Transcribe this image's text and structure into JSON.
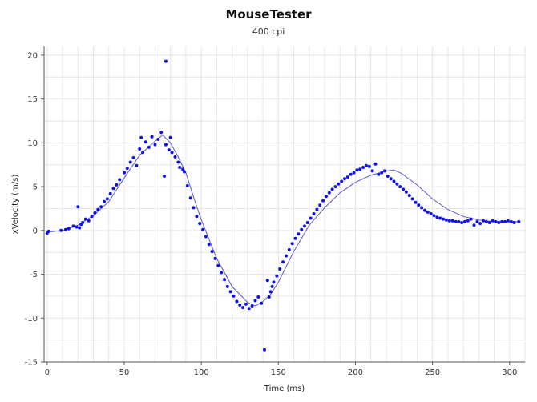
{
  "chart_data": {
    "type": "scatter",
    "title": "MouseTester",
    "subtitle": "400 cpi",
    "xlabel": "Time (ms)",
    "ylabel": "xVelocity (m/s)",
    "xlim": [
      -2,
      310
    ],
    "ylim": [
      -15,
      21
    ],
    "xticks": [
      0,
      50,
      100,
      150,
      200,
      250,
      300
    ],
    "yticks": [
      -15,
      -10,
      -5,
      0,
      5,
      10,
      15,
      20
    ],
    "grid": true,
    "legend": "none",
    "colors": {
      "points": "#1010ee",
      "line": "#5a5ad0",
      "grid": "#e6e6e6",
      "axis": "#555555"
    },
    "series": [
      {
        "kind": "points",
        "x": [
          0,
          1,
          9,
          12,
          14,
          17,
          19,
          20,
          21,
          22,
          23,
          25,
          27,
          29,
          31,
          33,
          35,
          37,
          39,
          41,
          43,
          45,
          47,
          50,
          52,
          54,
          56,
          58,
          60,
          61,
          62,
          64,
          66,
          68,
          70,
          72,
          74,
          76,
          77,
          77,
          79,
          80,
          81,
          83,
          85,
          86,
          88,
          89,
          91,
          93,
          95,
          97,
          99,
          101,
          103,
          105,
          107,
          109,
          111,
          113,
          115,
          117,
          119,
          121,
          123,
          125,
          127,
          129,
          131,
          133,
          135,
          137,
          139,
          141,
          143,
          144,
          145,
          146,
          147,
          149,
          151,
          153,
          155,
          157,
          159,
          161,
          163,
          165,
          167,
          169,
          171,
          173,
          175,
          177,
          179,
          181,
          183,
          185,
          187,
          189,
          191,
          193,
          195,
          197,
          199,
          201,
          203,
          205,
          207,
          209,
          211,
          213,
          215,
          217,
          219,
          221,
          223,
          225,
          227,
          229,
          231,
          233,
          235,
          237,
          239,
          241,
          243,
          245,
          247,
          249,
          251,
          253,
          255,
          257,
          259,
          261,
          263,
          265,
          267,
          269,
          271,
          273,
          275,
          277,
          279,
          281,
          283,
          285,
          287,
          289,
          291,
          293,
          295,
          297,
          299,
          301,
          303,
          306
        ],
        "y": [
          -0.3,
          -0.1,
          0.0,
          0.1,
          0.2,
          0.5,
          0.4,
          2.7,
          0.3,
          0.7,
          0.9,
          1.3,
          1.1,
          1.6,
          2.0,
          2.4,
          2.7,
          3.3,
          3.6,
          4.2,
          4.8,
          5.2,
          5.8,
          6.6,
          7.1,
          7.8,
          8.3,
          7.4,
          9.3,
          10.6,
          8.9,
          10.1,
          9.5,
          10.7,
          9.8,
          10.4,
          11.2,
          6.2,
          19.3,
          9.8,
          9.2,
          10.6,
          8.9,
          8.4,
          7.8,
          7.2,
          7.0,
          6.7,
          5.1,
          3.7,
          2.6,
          1.6,
          0.8,
          0.1,
          -0.7,
          -1.6,
          -2.4,
          -3.2,
          -4.0,
          -4.8,
          -5.6,
          -6.4,
          -7.0,
          -7.5,
          -8.1,
          -8.5,
          -8.8,
          -8.4,
          -8.9,
          -8.6,
          -8.0,
          -7.6,
          -8.3,
          -13.6,
          -5.7,
          -7.6,
          -7.0,
          -6.4,
          -5.9,
          -5.2,
          -4.4,
          -3.6,
          -2.9,
          -2.2,
          -1.5,
          -0.9,
          -0.4,
          0.1,
          0.5,
          0.9,
          1.4,
          1.9,
          2.4,
          2.9,
          3.4,
          3.9,
          4.3,
          4.7,
          5.0,
          5.3,
          5.6,
          5.9,
          6.1,
          6.4,
          6.6,
          6.9,
          7.0,
          7.2,
          7.4,
          7.3,
          6.8,
          7.6,
          6.4,
          6.6,
          6.8,
          6.2,
          5.9,
          5.6,
          5.3,
          5.0,
          4.7,
          4.4,
          4.0,
          3.6,
          3.2,
          2.9,
          2.6,
          2.3,
          2.1,
          1.9,
          1.7,
          1.5,
          1.4,
          1.3,
          1.2,
          1.1,
          1.1,
          1.0,
          1.0,
          0.9,
          1.0,
          1.1,
          1.3,
          0.6,
          1.0,
          0.8,
          1.1,
          1.0,
          0.9,
          1.1,
          1.0,
          0.9,
          1.0,
          1.0,
          1.1,
          1.0,
          0.9,
          1.0
        ]
      },
      {
        "kind": "line",
        "x": [
          0,
          10,
          20,
          30,
          40,
          50,
          60,
          70,
          75,
          80,
          85,
          90,
          95,
          100,
          110,
          120,
          130,
          135,
          140,
          145,
          150,
          160,
          170,
          180,
          190,
          200,
          210,
          220,
          225,
          230,
          240,
          250,
          260,
          270,
          280,
          290,
          300,
          306
        ],
        "y": [
          -0.2,
          0.0,
          0.6,
          1.7,
          3.3,
          6.0,
          8.6,
          10.2,
          10.9,
          10.0,
          8.4,
          6.6,
          3.8,
          1.2,
          -3.2,
          -6.4,
          -8.2,
          -8.6,
          -8.1,
          -7.3,
          -5.9,
          -2.4,
          0.6,
          2.6,
          4.3,
          5.5,
          6.3,
          6.8,
          6.9,
          6.5,
          5.2,
          3.6,
          2.4,
          1.6,
          1.2,
          1.0,
          1.0,
          1.0
        ]
      }
    ]
  }
}
